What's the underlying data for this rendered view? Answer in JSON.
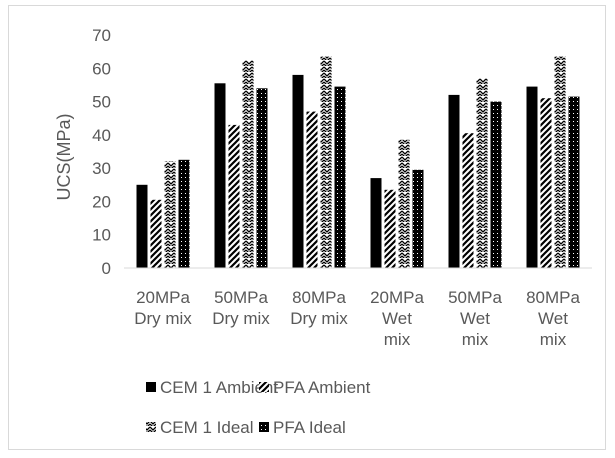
{
  "chart_data": {
    "type": "bar",
    "title": "",
    "xlabel": "",
    "ylabel": "UCS(MPa)",
    "ylim": [
      0,
      70
    ],
    "yticks": [
      0,
      10,
      20,
      30,
      40,
      50,
      60,
      70
    ],
    "grid": false,
    "legend_position": "bottom",
    "categories": [
      [
        "20MPa",
        "Dry mix"
      ],
      [
        "50MPa",
        "Dry mix"
      ],
      [
        "80MPa",
        "Dry mix"
      ],
      [
        "20MPa",
        "Wet",
        "mix"
      ],
      [
        "50MPa",
        "Wet",
        "mix"
      ],
      [
        "80MPa",
        "Wet",
        "mix"
      ]
    ],
    "series": [
      {
        "name": "CEM 1 Ambient",
        "pattern": "solid",
        "values": [
          25,
          55.5,
          58,
          27,
          52,
          54.5
        ]
      },
      {
        "name": "PFA Ambient",
        "pattern": "forward-diagonal",
        "values": [
          20.5,
          43,
          47,
          23.5,
          40.5,
          51
        ]
      },
      {
        "name": "CEM 1 Ideal",
        "pattern": "zigzag",
        "values": [
          32,
          62.5,
          63.5,
          38.5,
          57,
          63.5
        ]
      },
      {
        "name": "PFA Ideal",
        "pattern": "dotted",
        "values": [
          32.5,
          54,
          54.5,
          29.5,
          50,
          51.5
        ]
      }
    ],
    "colors": {
      "bar": "#000000",
      "text": "#595959",
      "axis": "#d9d9d9",
      "frame": "#d9d9d9"
    }
  }
}
